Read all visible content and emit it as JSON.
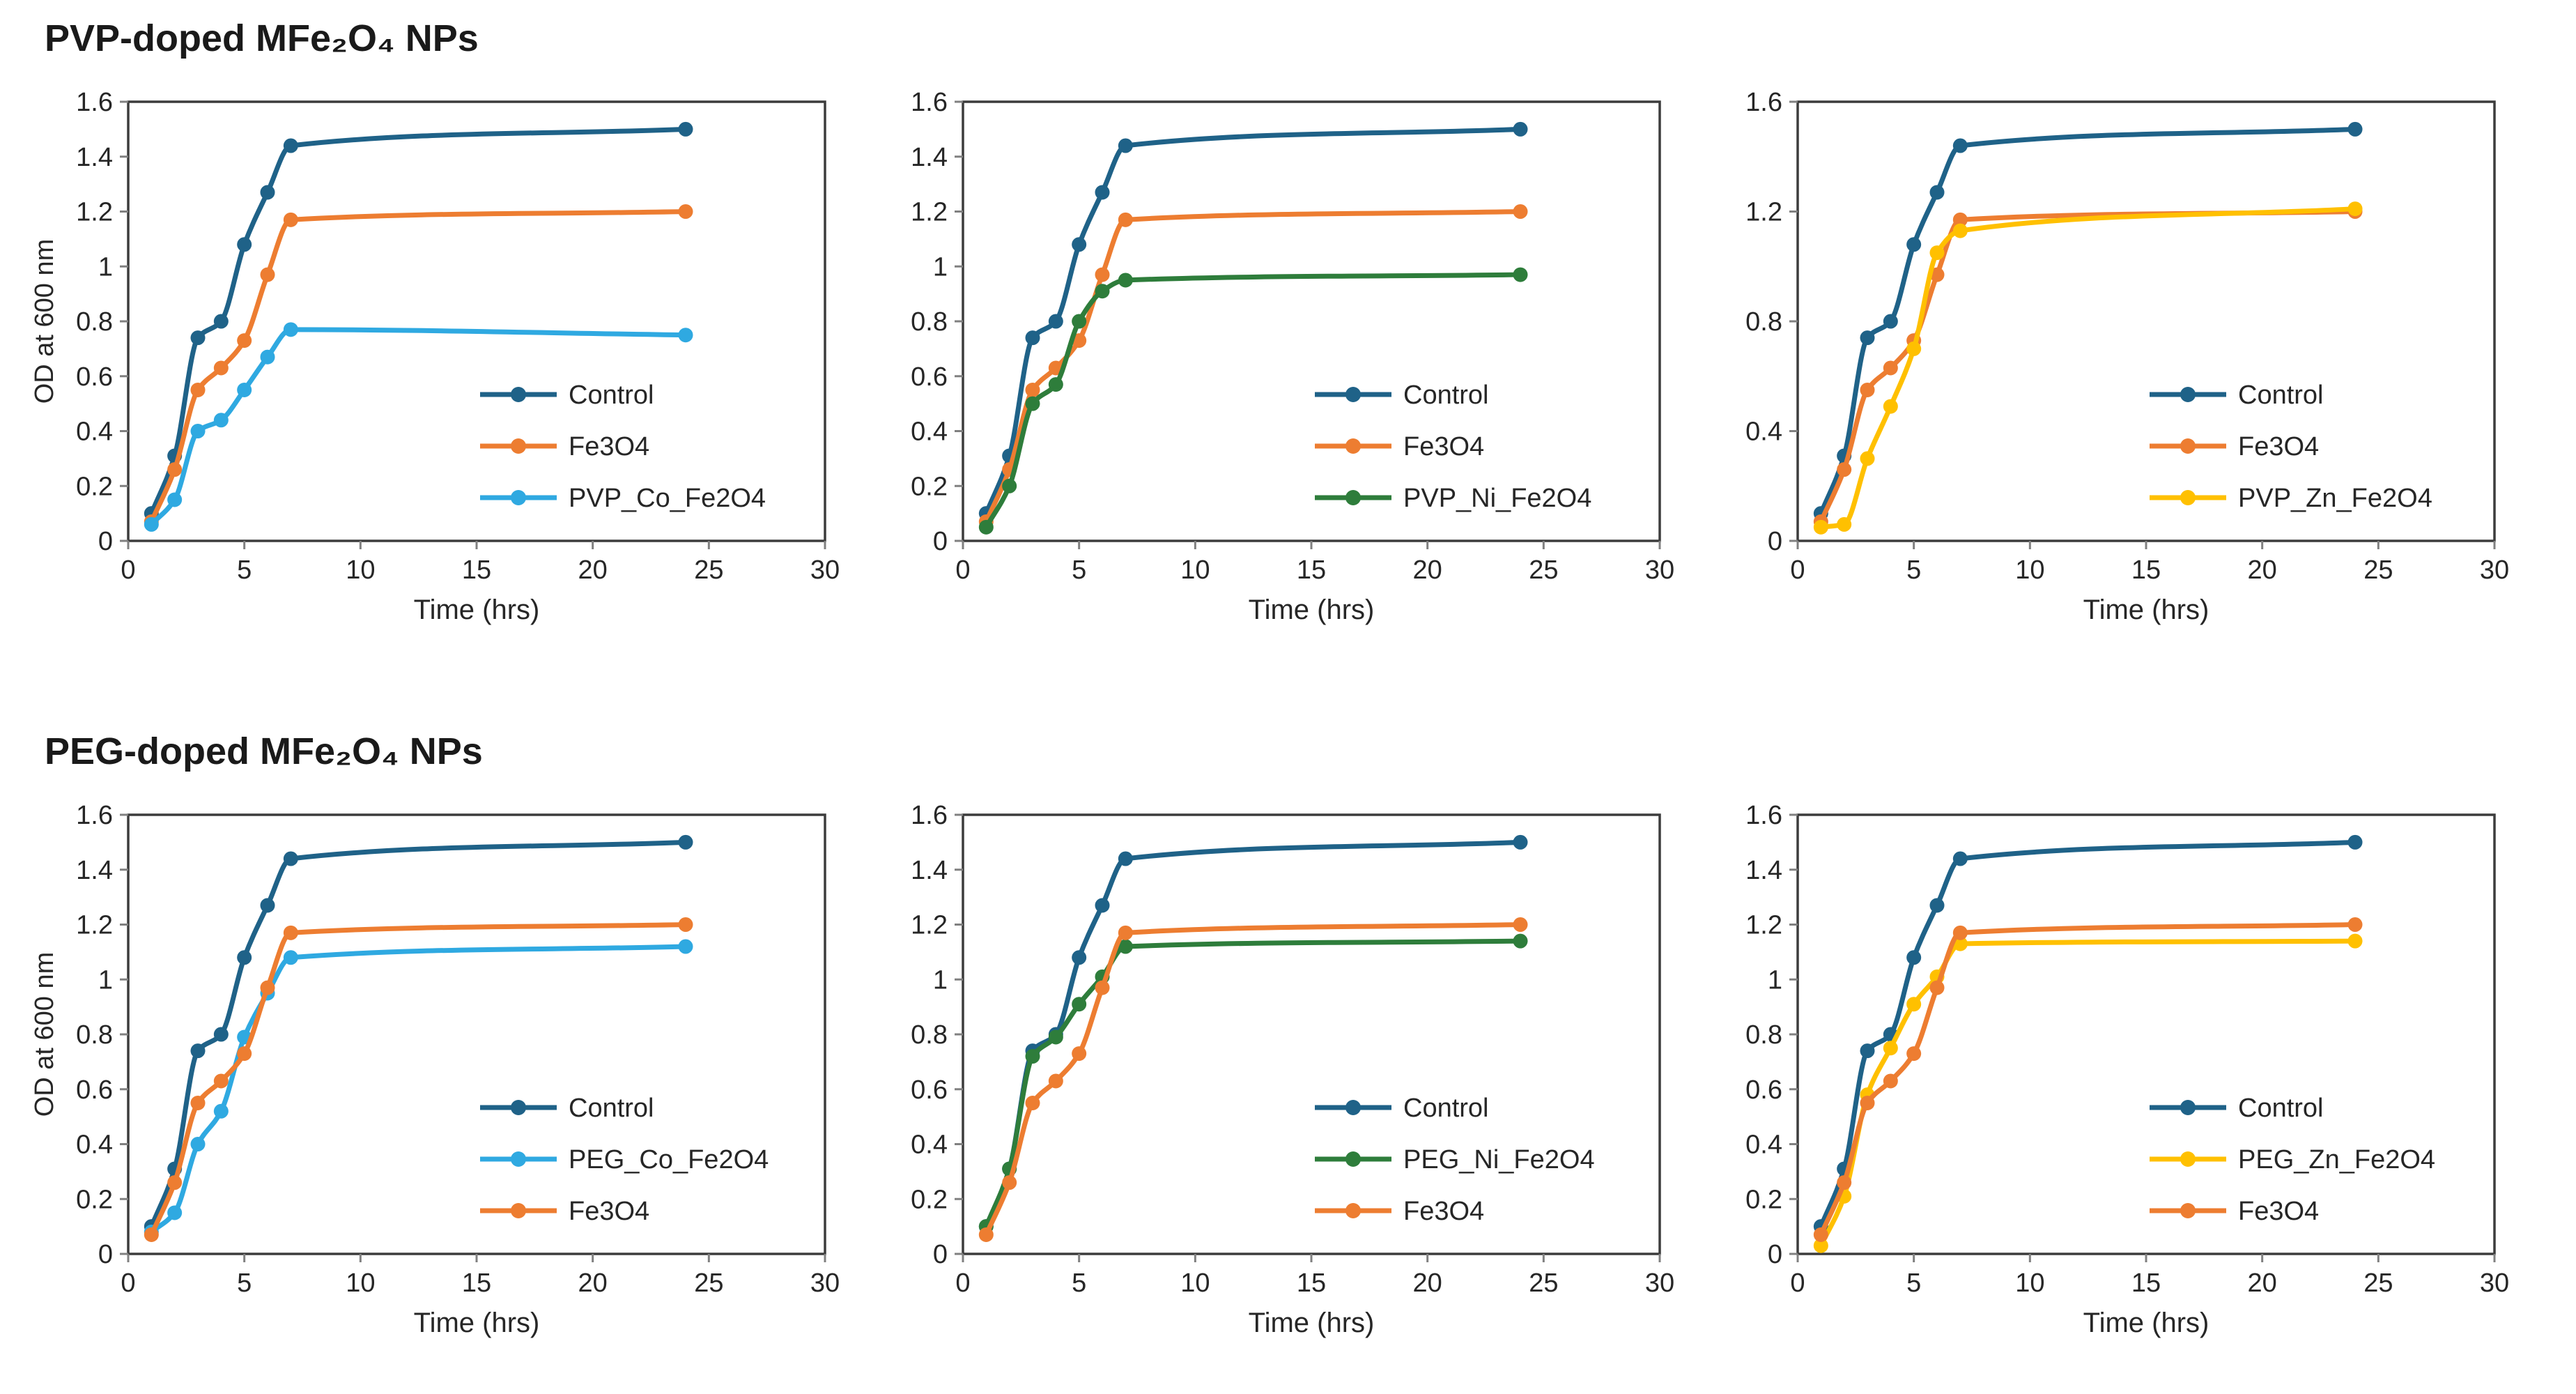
{
  "page_background": "#ffffff",
  "sections": [
    {
      "title": "PVP-doped MFe₂O₄ NPs",
      "chart_refs": [
        0,
        1,
        2
      ]
    },
    {
      "title": "PEG-doped MFe₂O₄ NPs",
      "chart_refs": [
        3,
        4,
        5
      ]
    }
  ],
  "colors": {
    "control": "#1F6288",
    "fe3o4": "#ED7D31",
    "co_ferrite": "#2FA9E1",
    "ni_ferrite": "#2E7D3B",
    "zn_ferrite": "#FFC000",
    "axis_border": "#3C3C3C",
    "tick": "#808080",
    "text": "#262626"
  },
  "chart_data": [
    {
      "type": "line",
      "xlabel": "Time (hrs)",
      "ylabel": "OD at 600 nm",
      "show_ylabel": true,
      "xlim": [
        0,
        30
      ],
      "ylim": [
        0,
        1.6
      ],
      "xticks": [
        0,
        5,
        10,
        15,
        20,
        25,
        30
      ],
      "yticks": [
        0,
        0.2,
        0.4,
        0.6,
        0.8,
        1,
        1.2,
        1.4,
        1.6
      ],
      "grid": false,
      "legend_position": "inside-lower-right",
      "x": [
        1,
        2,
        3,
        4,
        5,
        6,
        7,
        24
      ],
      "series": [
        {
          "name": "Control",
          "color": "#1F6288",
          "values": [
            0.1,
            0.31,
            0.74,
            0.8,
            1.08,
            1.27,
            1.44,
            1.5
          ]
        },
        {
          "name": "Fe3O4",
          "color": "#ED7D31",
          "values": [
            0.07,
            0.26,
            0.55,
            0.63,
            0.73,
            0.97,
            1.17,
            1.2
          ]
        },
        {
          "name": "PVP_Co_Fe2O4",
          "color": "#2FA9E1",
          "values": [
            0.06,
            0.15,
            0.4,
            0.44,
            0.55,
            0.67,
            0.77,
            0.75
          ]
        }
      ]
    },
    {
      "type": "line",
      "xlabel": "Time (hrs)",
      "ylabel": "OD at 600 nm",
      "show_ylabel": false,
      "xlim": [
        0,
        30
      ],
      "ylim": [
        0,
        1.6
      ],
      "xticks": [
        0,
        5,
        10,
        15,
        20,
        25,
        30
      ],
      "yticks": [
        0,
        0.2,
        0.4,
        0.6,
        0.8,
        1,
        1.2,
        1.4,
        1.6
      ],
      "grid": false,
      "legend_position": "inside-lower-right",
      "x": [
        1,
        2,
        3,
        4,
        5,
        6,
        7,
        24
      ],
      "series": [
        {
          "name": "Control",
          "color": "#1F6288",
          "values": [
            0.1,
            0.31,
            0.74,
            0.8,
            1.08,
            1.27,
            1.44,
            1.5
          ]
        },
        {
          "name": "Fe3O4",
          "color": "#ED7D31",
          "values": [
            0.07,
            0.26,
            0.55,
            0.63,
            0.73,
            0.97,
            1.17,
            1.2
          ]
        },
        {
          "name": "PVP_Ni_Fe2O4",
          "color": "#2E7D3B",
          "values": [
            0.05,
            0.2,
            0.5,
            0.57,
            0.8,
            0.91,
            0.95,
            0.97
          ]
        }
      ]
    },
    {
      "type": "line",
      "xlabel": "Time (hrs)",
      "ylabel": "OD at 600 nm",
      "show_ylabel": false,
      "xlim": [
        0,
        30
      ],
      "ylim": [
        0,
        1.6
      ],
      "xticks": [
        0,
        5,
        10,
        15,
        20,
        25,
        30
      ],
      "yticks": [
        0,
        0.4,
        0.8,
        1.2,
        1.6
      ],
      "grid": false,
      "legend_position": "inside-lower-right",
      "x": [
        1,
        2,
        3,
        4,
        5,
        6,
        7,
        24
      ],
      "series": [
        {
          "name": "Control",
          "color": "#1F6288",
          "values": [
            0.1,
            0.31,
            0.74,
            0.8,
            1.08,
            1.27,
            1.44,
            1.5
          ]
        },
        {
          "name": "Fe3O4",
          "color": "#ED7D31",
          "values": [
            0.07,
            0.26,
            0.55,
            0.63,
            0.73,
            0.97,
            1.17,
            1.2
          ]
        },
        {
          "name": "PVP_Zn_Fe2O4",
          "color": "#FFC000",
          "values": [
            0.05,
            0.06,
            0.3,
            0.49,
            0.7,
            1.05,
            1.13,
            1.21
          ]
        }
      ]
    },
    {
      "type": "line",
      "xlabel": "Time (hrs)",
      "ylabel": "OD at 600 nm",
      "show_ylabel": true,
      "xlim": [
        0,
        30
      ],
      "ylim": [
        0,
        1.6
      ],
      "xticks": [
        0,
        5,
        10,
        15,
        20,
        25,
        30
      ],
      "yticks": [
        0,
        0.2,
        0.4,
        0.6,
        0.8,
        1,
        1.2,
        1.4,
        1.6
      ],
      "grid": false,
      "legend_position": "inside-lower-right",
      "x": [
        1,
        2,
        3,
        4,
        5,
        6,
        7,
        24
      ],
      "series": [
        {
          "name": "Control",
          "color": "#1F6288",
          "values": [
            0.1,
            0.31,
            0.74,
            0.8,
            1.08,
            1.27,
            1.44,
            1.5
          ]
        },
        {
          "name": "PEG_Co_Fe2O4",
          "color": "#2FA9E1",
          "values": [
            0.08,
            0.15,
            0.4,
            0.52,
            0.79,
            0.95,
            1.08,
            1.12
          ]
        },
        {
          "name": "Fe3O4",
          "color": "#ED7D31",
          "values": [
            0.07,
            0.26,
            0.55,
            0.63,
            0.73,
            0.97,
            1.17,
            1.2
          ]
        }
      ]
    },
    {
      "type": "line",
      "xlabel": "Time (hrs)",
      "ylabel": "OD at 600 nm",
      "show_ylabel": false,
      "xlim": [
        0,
        30
      ],
      "ylim": [
        0,
        1.6
      ],
      "xticks": [
        0,
        5,
        10,
        15,
        20,
        25,
        30
      ],
      "yticks": [
        0,
        0.2,
        0.4,
        0.6,
        0.8,
        1,
        1.2,
        1.4,
        1.6
      ],
      "grid": false,
      "legend_position": "inside-lower-right",
      "x": [
        1,
        2,
        3,
        4,
        5,
        6,
        7,
        24
      ],
      "series": [
        {
          "name": "Control",
          "color": "#1F6288",
          "values": [
            0.1,
            0.31,
            0.74,
            0.8,
            1.08,
            1.27,
            1.44,
            1.5
          ]
        },
        {
          "name": "PEG_Ni_Fe2O4",
          "color": "#2E7D3B",
          "values": [
            0.1,
            0.31,
            0.72,
            0.79,
            0.91,
            1.01,
            1.12,
            1.14
          ]
        },
        {
          "name": "Fe3O4",
          "color": "#ED7D31",
          "values": [
            0.07,
            0.26,
            0.55,
            0.63,
            0.73,
            0.97,
            1.17,
            1.2
          ]
        }
      ]
    },
    {
      "type": "line",
      "xlabel": "Time (hrs)",
      "ylabel": "OD at 600 nm",
      "show_ylabel": false,
      "xlim": [
        0,
        30
      ],
      "ylim": [
        0,
        1.6
      ],
      "xticks": [
        0,
        5,
        10,
        15,
        20,
        25,
        30
      ],
      "yticks": [
        0,
        0.2,
        0.4,
        0.6,
        0.8,
        1,
        1.2,
        1.4,
        1.6
      ],
      "grid": false,
      "legend_position": "inside-lower-right",
      "x": [
        1,
        2,
        3,
        4,
        5,
        6,
        7,
        24
      ],
      "series": [
        {
          "name": "Control",
          "color": "#1F6288",
          "values": [
            0.1,
            0.31,
            0.74,
            0.8,
            1.08,
            1.27,
            1.44,
            1.5
          ]
        },
        {
          "name": "PEG_Zn_Fe2O4",
          "color": "#FFC000",
          "values": [
            0.03,
            0.21,
            0.58,
            0.75,
            0.91,
            1.01,
            1.13,
            1.14
          ]
        },
        {
          "name": "Fe3O4",
          "color": "#ED7D31",
          "values": [
            0.07,
            0.26,
            0.55,
            0.63,
            0.73,
            0.97,
            1.17,
            1.2
          ]
        }
      ]
    }
  ]
}
